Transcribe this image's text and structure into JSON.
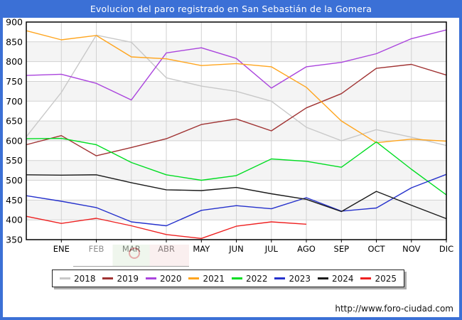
{
  "title": "Evolucion del paro registrado en San Sebastián de la Gomera",
  "footer": {
    "url": "http://www.foro-ciudad.com"
  },
  "colors": {
    "frame_blue": "#3b70d6",
    "grid": "#d2d2d2",
    "band_alt": "#f4f4f4",
    "plot_border": "#000000"
  },
  "chart_data": {
    "type": "line",
    "title": "Evolucion del paro registrado en San Sebastián de la Gomera",
    "xlabel": "",
    "ylabel": "",
    "ylim": [
      350,
      900
    ],
    "y_ticks": [
      900,
      850,
      800,
      750,
      700,
      650,
      600,
      550,
      500,
      450,
      400,
      350
    ],
    "x_labels": [
      "ENE",
      "FEB",
      "MAR",
      "ABR",
      "MAY",
      "JUN",
      "JUL",
      "AGO",
      "SEP",
      "OCT",
      "NOV",
      "DIC"
    ],
    "x_note": "13 sample points per full series: index 0 sits on the left axis, indices 1-12 fall on the ENE-DIC gridlines",
    "grid": true,
    "legend_position": "bottom",
    "series": [
      {
        "name": "2018",
        "color": "#c8c8c8",
        "values": [
          610,
          722,
          867,
          849,
          759,
          738,
          725,
          700,
          634,
          600,
          628,
          609,
          588
        ]
      },
      {
        "name": "2019",
        "color": "#a03232",
        "values": [
          590,
          613,
          562,
          583,
          605,
          641,
          655,
          625,
          683,
          719,
          783,
          793,
          766
        ]
      },
      {
        "name": "2020",
        "color": "#aa44dd",
        "values": [
          765,
          768,
          745,
          703,
          822,
          835,
          808,
          733,
          787,
          798,
          820,
          858,
          880
        ]
      },
      {
        "name": "2021",
        "color": "#ffa51e",
        "values": [
          878,
          855,
          866,
          812,
          807,
          790,
          795,
          787,
          735,
          650,
          595,
          604,
          599
        ]
      },
      {
        "name": "2022",
        "color": "#00dd22",
        "values": [
          605,
          606,
          590,
          545,
          514,
          500,
          512,
          554,
          548,
          533,
          597,
          528,
          463
        ]
      },
      {
        "name": "2023",
        "color": "#2531cc",
        "values": [
          461,
          447,
          431,
          395,
          385,
          424,
          436,
          428,
          456,
          422,
          430,
          481,
          515
        ]
      },
      {
        "name": "2024",
        "color": "#1a1a1a",
        "values": [
          514,
          513,
          514,
          494,
          476,
          474,
          482,
          466,
          452,
          421,
          472,
          437,
          403
        ]
      },
      {
        "name": "2025",
        "color": "#ee2020",
        "values": [
          409,
          391,
          404,
          385,
          363,
          353,
          384,
          395,
          389
        ]
      }
    ]
  }
}
